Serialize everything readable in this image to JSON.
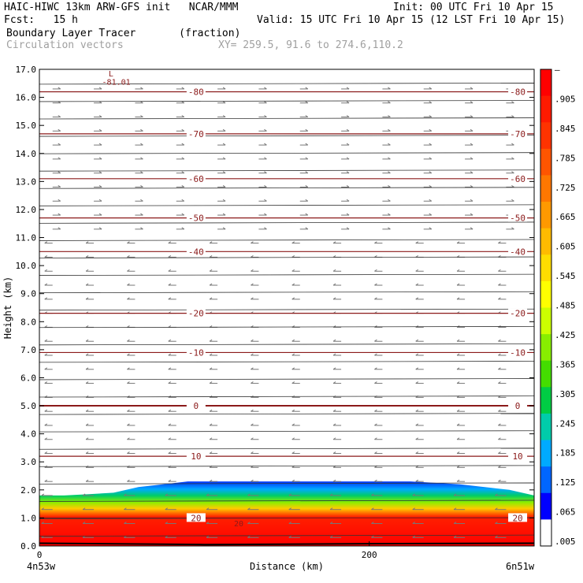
{
  "header": {
    "model_line": "HAIC-HIWC 13km ARW-GFS init   NCAR/MMM",
    "init_line": "Init: 00 UTC Fri 10 Apr 15",
    "fcst_line": "Fcst:   15 h",
    "valid_line": "Valid: 15 UTC Fri 10 Apr 15 (12 LST Fri 10 Apr 15)",
    "field_line": "Boundary Layer Tracer       (fraction)",
    "vectors_line": "Circulation vectors",
    "xy_line": "XY= 259.5, 91.6 to 274.6,110.2"
  },
  "chart_data": {
    "type": "heatmap",
    "title": "Boundary Layer Tracer",
    "units": "(fraction)",
    "xlabel": "Distance (km)",
    "ylabel": "Height (km)",
    "xlim": [
      0,
      300
    ],
    "ylim": [
      0,
      17
    ],
    "x_ticks": [
      0,
      200
    ],
    "x_tick_labels": [
      "0",
      "200"
    ],
    "x_end_labels": [
      "4n53w",
      "6n51w"
    ],
    "y_ticks": [
      "0.0",
      "1.0",
      "2.0",
      "3.0",
      "4.0",
      "5.0",
      "6.0",
      "7.0",
      "8.0",
      "9.0",
      "10.0",
      "11.0",
      "12.0",
      "13.0",
      "14.0",
      "15.0",
      "16.0",
      "17.0"
    ],
    "colorbar": {
      "labels": [
        "–",
        ".905",
        ".845",
        ".785",
        ".725",
        ".665",
        ".605",
        ".545",
        ".485",
        ".425",
        ".365",
        ".305",
        ".245",
        ".185",
        ".125",
        ".065",
        ".005"
      ],
      "colors": [
        "#ff0000",
        "#ff1a00",
        "#ff3300",
        "#ff5500",
        "#ff7700",
        "#ff9900",
        "#ffbb00",
        "#ffdd00",
        "#ffff00",
        "#ccff00",
        "#88ee00",
        "#44dd00",
        "#00cc44",
        "#00ccaa",
        "#00aaff",
        "#0066ff",
        "#0000ff",
        "#ffffff"
      ]
    },
    "temperature_contours": [
      {
        "label": "-80",
        "height": 16.2
      },
      {
        "label": "-70",
        "height": 14.7
      },
      {
        "label": "-60",
        "height": 13.1
      },
      {
        "label": "-50",
        "height": 11.7
      },
      {
        "label": "-40",
        "height": 10.5
      },
      {
        "label": "-20",
        "height": 8.3
      },
      {
        "label": "-10",
        "height": 6.9
      },
      {
        "label": "0",
        "height": 5.0
      },
      {
        "label": "10",
        "height": 3.2
      },
      {
        "label": "20",
        "height": 1.0
      }
    ],
    "extra_contour_labels": [
      "L",
      "-81.01",
      "20"
    ],
    "tracer_layer": {
      "top_height_km": [
        1.8,
        1.8,
        1.85,
        1.9,
        2.1,
        2.2,
        2.3,
        2.3,
        2.3,
        2.3,
        2.3,
        2.3,
        2.3,
        2.3,
        2.3,
        2.3,
        2.25,
        2.2,
        2.1,
        2.0,
        1.8
      ],
      "x_km": [
        0,
        15,
        30,
        45,
        60,
        75,
        90,
        105,
        120,
        135,
        150,
        165,
        180,
        195,
        210,
        225,
        240,
        255,
        270,
        285,
        300
      ]
    }
  }
}
